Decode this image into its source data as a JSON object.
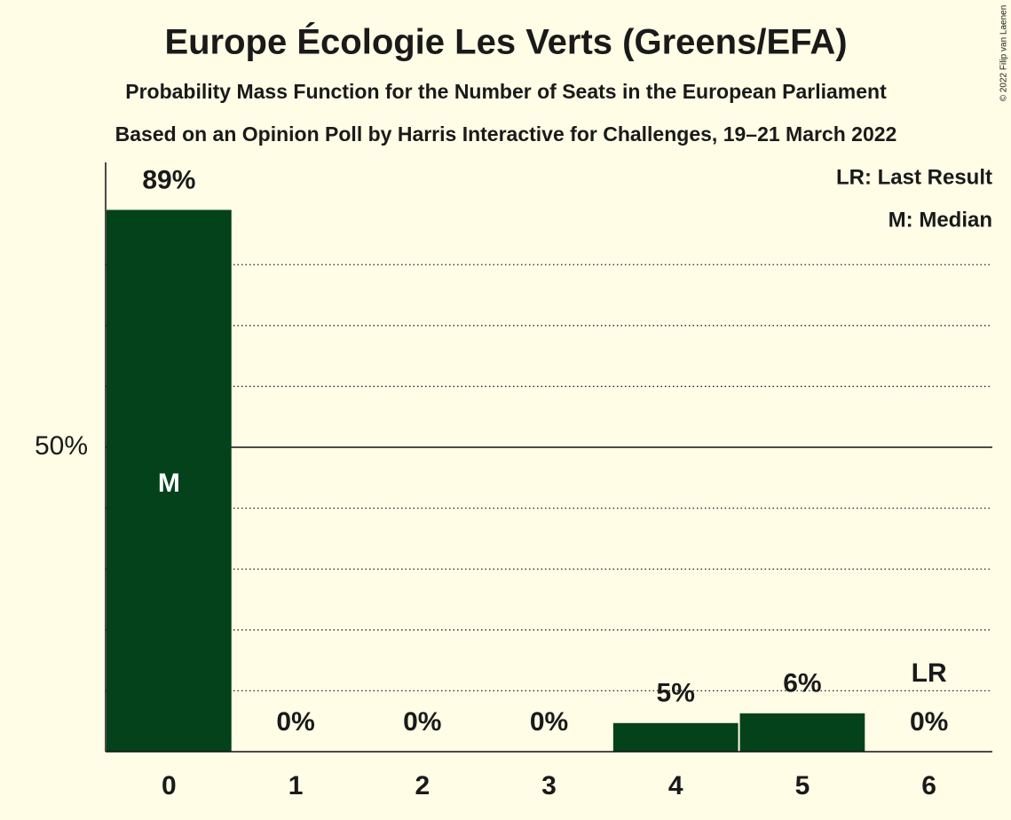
{
  "chart_data": {
    "type": "bar",
    "title": "Europe Écologie Les Verts (Greens/EFA)",
    "subtitle": "Probability Mass Function for the Number of Seats in the European Parliament",
    "subtitle2": "Based on an Opinion Poll by Harris Interactive for Challenges, 19–21 March 2022",
    "copyright": "© 2022 Filip van Laenen",
    "categories": [
      "0",
      "1",
      "2",
      "3",
      "4",
      "5",
      "6"
    ],
    "values": [
      89,
      0,
      0,
      0,
      4.7,
      6.3,
      0
    ],
    "value_labels": [
      "89%",
      "0%",
      "0%",
      "0%",
      "5%",
      "6%",
      "0%"
    ],
    "color": "#03421a",
    "ylim": [
      0,
      96.8
    ],
    "yticks": [
      {
        "value": 50,
        "label": "50%"
      }
    ],
    "gridlines": [
      10,
      20,
      30,
      40,
      60,
      70,
      80
    ],
    "annotations": [
      {
        "text": "M",
        "category": "0"
      },
      {
        "text": "LR",
        "category": "6"
      }
    ],
    "legend": [
      "LR: Last Result",
      "M: Median"
    ]
  }
}
